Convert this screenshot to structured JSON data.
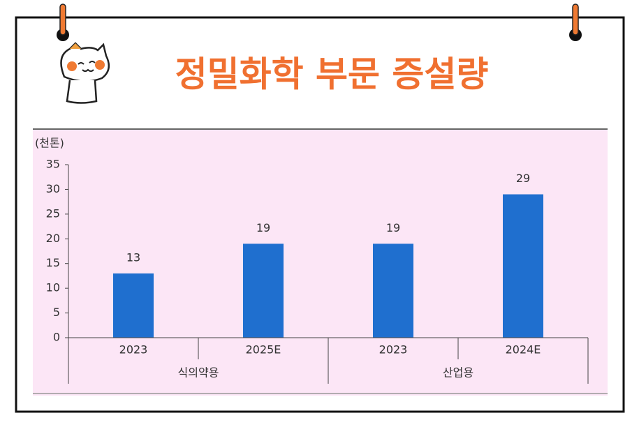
{
  "chart_data": {
    "type": "bar",
    "title": "정밀화학 부문 증설량",
    "y_label": "(천톤)",
    "groups": [
      {
        "name": "식의약용",
        "categories": [
          "2023",
          "2025E"
        ]
      },
      {
        "name": "산업용",
        "categories": [
          "2023",
          "2024E"
        ]
      }
    ],
    "values": [
      13,
      19,
      19,
      29
    ],
    "color": "#1f6fcf",
    "ylim": [
      0,
      35
    ],
    "yticks": [
      0,
      5,
      10,
      15,
      20,
      25,
      30,
      35
    ],
    "grid": false
  }
}
